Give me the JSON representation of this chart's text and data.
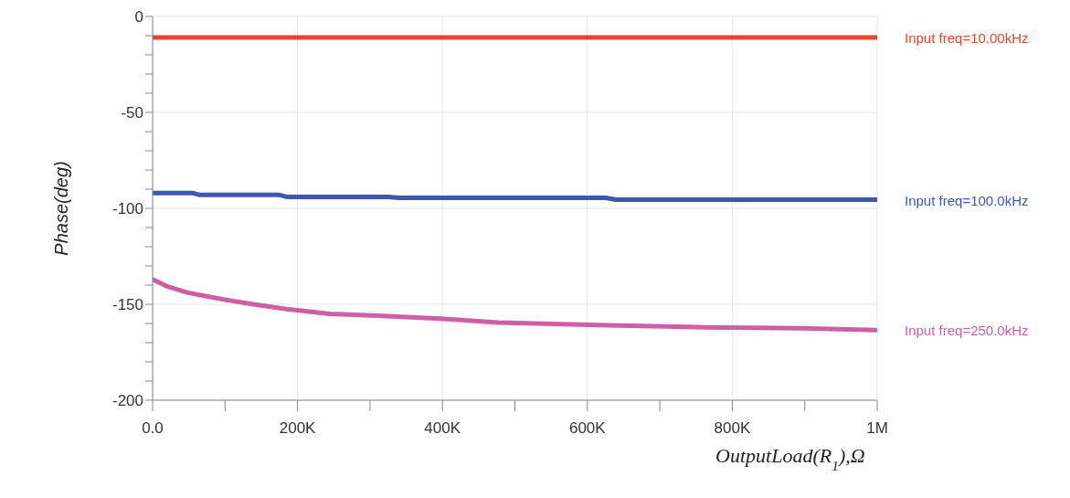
{
  "chart_data": {
    "type": "line",
    "xlabel": "OutputLoad(R$_{1}$),Ω",
    "ylabel": "Phase(deg)",
    "xlim": [
      0,
      1000000
    ],
    "xticks": [
      {
        "value": 0,
        "label": "0.0"
      },
      {
        "value": 100000,
        "label": null
      },
      {
        "value": 200000,
        "label": "200K"
      },
      {
        "value": 300000,
        "label": null
      },
      {
        "value": 400000,
        "label": "400K"
      },
      {
        "value": 500000,
        "label": null
      },
      {
        "value": 600000,
        "label": "600K"
      },
      {
        "value": 700000,
        "label": null
      },
      {
        "value": 800000,
        "label": "800K"
      },
      {
        "value": 900000,
        "label": null
      },
      {
        "value": 1000000,
        "label": "1M"
      }
    ],
    "ylim": [
      -200,
      0
    ],
    "yticks": [
      0,
      {
        "value": -10,
        "label": null
      },
      {
        "value": -20,
        "label": null
      },
      {
        "value": -30,
        "label": null
      },
      {
        "value": -40,
        "label": null
      },
      -50,
      {
        "value": -60,
        "label": null
      },
      {
        "value": -70,
        "label": null
      },
      {
        "value": -80,
        "label": null
      },
      {
        "value": -90,
        "label": null
      },
      -100,
      {
        "value": -110,
        "label": null
      },
      {
        "value": -120,
        "label": null
      },
      {
        "value": -130,
        "label": null
      },
      {
        "value": -140,
        "label": null
      },
      -150,
      {
        "value": -160,
        "label": null
      },
      {
        "value": -170,
        "label": null
      },
      {
        "value": -180,
        "label": null
      },
      {
        "value": -190,
        "label": null
      },
      -200
    ],
    "grid": true,
    "marker": "none",
    "line_style": "solid",
    "series": [
      {
        "name": "Input freq=10.00kHz",
        "color": "#e8452c",
        "x": [
          0,
          1000000
        ],
        "values": [
          -11,
          -11
        ]
      },
      {
        "name": "Input freq=100.0kHz",
        "color": "#3d57b0",
        "x": [
          0,
          55000,
          65000,
          175000,
          185000,
          325000,
          340000,
          625000,
          640000,
          1000000
        ],
        "values": [
          -92,
          -92,
          -93,
          -93,
          -94,
          -94,
          -94.5,
          -94.5,
          -95.5,
          -95.5
        ]
      },
      {
        "name": "Input freq=250.0kHz",
        "color": "#cc5fa6",
        "x": [
          0,
          19000,
          49000,
          98000,
          139000,
          185000,
          245000,
          311000,
          397000,
          477000,
          629000,
          763000,
          898000,
          1000000
        ],
        "values": [
          -137,
          -140.5,
          -144,
          -147.5,
          -150,
          -152.5,
          -155,
          -156,
          -157.5,
          -159.5,
          -161,
          -162,
          -162.5,
          -163.5
        ]
      }
    ]
  }
}
